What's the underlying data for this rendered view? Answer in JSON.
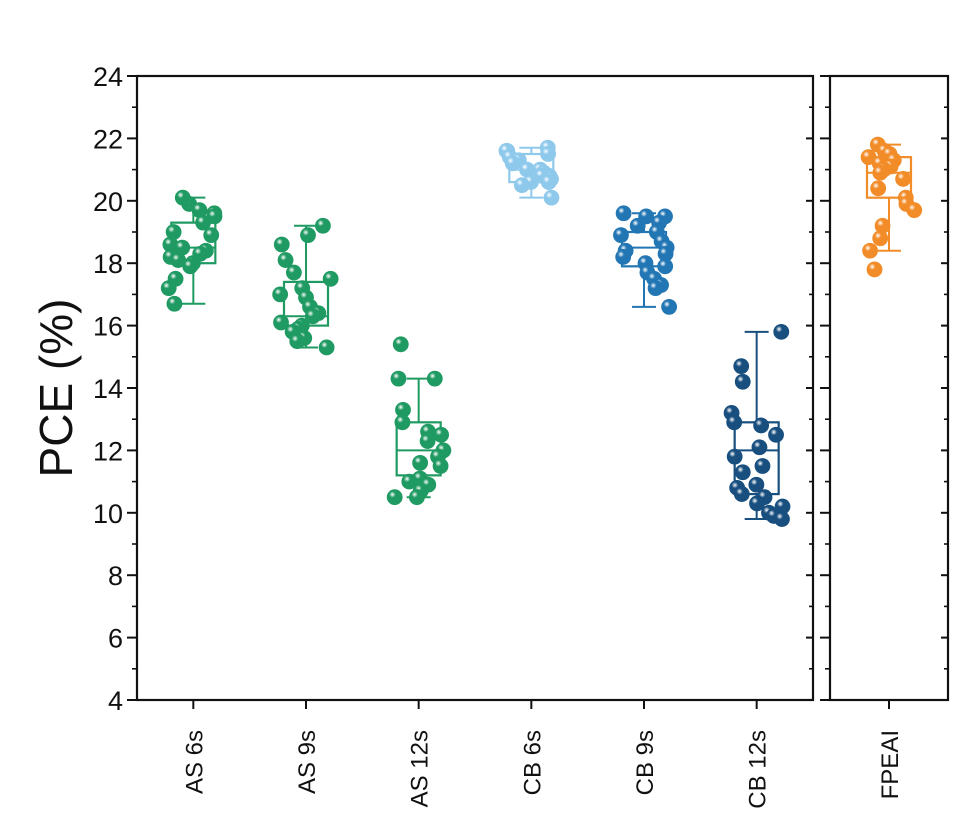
{
  "chart_data": {
    "type": "box",
    "ylabel": "PCE (%)",
    "ylim": [
      4,
      24
    ],
    "yticks": [
      4,
      6,
      8,
      10,
      12,
      14,
      16,
      18,
      20,
      22,
      24
    ],
    "yticks_labels": [
      "4",
      "6",
      "8",
      "10",
      "12",
      "14",
      "16",
      "18",
      "20",
      "22",
      "24"
    ],
    "grid": false,
    "panels": [
      {
        "categories": [
          "AS 6s",
          "AS 9s",
          "AS 12s",
          "CB 6s",
          "CB 9s",
          "CB 12s"
        ],
        "groups": [
          {
            "label": "AS 6s",
            "color": "#1f9a62",
            "box": {
              "min": 16.7,
              "q1": 18.0,
              "median": 18.5,
              "q3": 19.3,
              "max": 20.1
            },
            "points": [
              19.9,
              20.1,
              19.6,
              19.7,
              19.5,
              19.3,
              19.0,
              18.9,
              18.6,
              18.5,
              18.4,
              18.3,
              18.2,
              18.2,
              18.1,
              18.0,
              17.9,
              17.5,
              17.2,
              16.7
            ]
          },
          {
            "label": "AS 9s",
            "color": "#1f9a62",
            "box": {
              "min": 15.3,
              "q1": 16.0,
              "median": 16.3,
              "q3": 17.4,
              "max": 19.2
            },
            "points": [
              19.2,
              18.9,
              18.6,
              18.1,
              17.7,
              17.5,
              17.2,
              17.0,
              16.9,
              16.6,
              16.4,
              16.3,
              16.1,
              16.0,
              15.9,
              15.8,
              15.6,
              15.5,
              15.3
            ]
          },
          {
            "label": "AS 12s",
            "color": "#1f9a62",
            "box": {
              "min": 10.5,
              "q1": 11.2,
              "median": 12.0,
              "q3": 12.9,
              "max": 14.3
            },
            "points": [
              15.4,
              14.3,
              14.3,
              13.3,
              12.9,
              12.6,
              12.5,
              12.3,
              12.0,
              11.8,
              11.6,
              11.5,
              11.1,
              11.0,
              10.9,
              10.7,
              10.5,
              10.5
            ]
          },
          {
            "label": "CB 6s",
            "color": "#8ec9ec",
            "box": {
              "min": 20.1,
              "q1": 20.6,
              "median": 21.0,
              "q3": 21.5,
              "max": 21.7
            },
            "points": [
              21.7,
              21.6,
              21.6,
              21.5,
              21.4,
              21.3,
              21.2,
              21.0,
              21.0,
              20.9,
              20.8,
              20.8,
              20.7,
              20.6,
              20.6,
              20.5,
              20.1
            ]
          },
          {
            "label": "CB 9s",
            "color": "#2276b4",
            "box": {
              "min": 16.6,
              "q1": 17.9,
              "median": 18.5,
              "q3": 19.0,
              "max": 19.6
            },
            "points": [
              19.6,
              19.5,
              19.5,
              19.3,
              19.2,
              19.0,
              18.9,
              18.7,
              18.5,
              18.4,
              18.3,
              18.2,
              18.0,
              17.9,
              17.7,
              17.5,
              17.3,
              17.2,
              16.6
            ]
          },
          {
            "label": "CB 12s",
            "color": "#184f7f",
            "box": {
              "min": 9.8,
              "q1": 10.6,
              "median": 12.0,
              "q3": 12.9,
              "max": 15.8
            },
            "points": [
              15.8,
              14.7,
              14.2,
              13.2,
              12.9,
              12.8,
              12.5,
              12.1,
              11.8,
              11.5,
              11.3,
              10.9,
              10.8,
              10.6,
              10.5,
              10.3,
              10.2,
              10.0,
              9.9,
              9.8
            ]
          }
        ]
      },
      {
        "categories": [
          "FPEAI"
        ],
        "groups": [
          {
            "label": "FPEAI",
            "color": "#f28c28",
            "box": {
              "min": 18.4,
              "q1": 20.1,
              "median": 20.9,
              "q3": 21.4,
              "max": 21.8
            },
            "points": [
              21.8,
              21.6,
              21.5,
              21.4,
              21.3,
              21.2,
              21.1,
              21.0,
              20.9,
              20.7,
              20.4,
              20.1,
              19.9,
              19.7,
              19.2,
              18.8,
              18.4,
              17.8
            ]
          }
        ]
      }
    ]
  }
}
